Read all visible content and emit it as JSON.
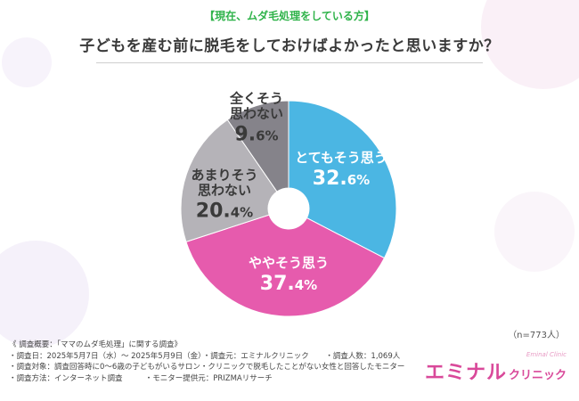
{
  "header": {
    "subtitle": "【現在、ムダ毛処理をしている方】",
    "title": "子どもを産む前に脱毛をしておけばよかったと思いますか？"
  },
  "chart_data": {
    "type": "pie",
    "title": "子どもを産む前に脱毛をしておけばよかったと思いますか？",
    "slices": [
      {
        "label_lines": [
          "とてもそう思う"
        ],
        "pct_num": "32.",
        "pct_dec": "6%",
        "value": 32.6,
        "color": "#4bb6e3",
        "label_color": "#ffffff"
      },
      {
        "label_lines": [
          "ややそう思う"
        ],
        "pct_num": "37.",
        "pct_dec": "4%",
        "value": 37.4,
        "color": "#e65bad",
        "label_color": "#ffffff"
      },
      {
        "label_lines": [
          "あまりそう",
          "思わない"
        ],
        "pct_num": "20.",
        "pct_dec": "4%",
        "value": 20.4,
        "color": "#b5b3b8",
        "label_color": "#3a3a3a"
      },
      {
        "label_lines": [
          "全くそう",
          "思わない"
        ],
        "pct_num": "9.",
        "pct_dec": "6%",
        "value": 9.6,
        "color": "#85838a",
        "label_color": "#3a3a3a"
      }
    ],
    "sample": "（n=773人）"
  },
  "survey": {
    "heading": "《 調査概要：「ママのムダ毛処理」に関する調査》",
    "rows": [
      [
        "・調査日：2025年5月7日（水）～ 2025年5月9日（金）",
        "・調査元：エミナルクリニック",
        "・調査人数：1,069人"
      ],
      [
        "・調査対象：調査回答時に0〜6歳の子どもがいるサロン・クリニックで脱毛したことがない女性と回答したモニター"
      ],
      [
        "・調査方法：インターネット調査",
        "・モニター提供元：PRIZMAリサーチ"
      ]
    ]
  },
  "logo": {
    "main": "エミナル",
    "sub": "クリニック",
    "tagline": "Eminal Clinic"
  },
  "colors": {
    "accent_green": "#2fb34a",
    "brand_pink": "#d9499a"
  }
}
